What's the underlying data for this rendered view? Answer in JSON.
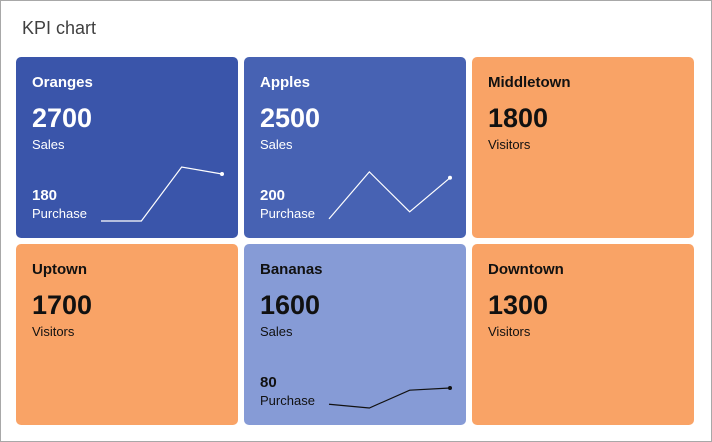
{
  "title": "KPI chart",
  "chart_data": {
    "type": "kpi",
    "title": "KPI chart",
    "tiles": [
      {
        "name": "Oranges",
        "value": "2700",
        "label": "Sales",
        "sub_value": "180",
        "sub_label": "Purchase",
        "bg": "#3a55aa",
        "fg": "#ffffff",
        "sparkline": [
          0,
          0,
          1,
          0.87
        ]
      },
      {
        "name": "Apples",
        "value": "2500",
        "label": "Sales",
        "sub_value": "200",
        "sub_label": "Purchase",
        "bg": "#4762b3",
        "fg": "#ffffff",
        "sparkline": [
          0.04,
          0.91,
          0.17,
          0.8
        ]
      },
      {
        "name": "Middletown",
        "value": "1800",
        "label": "Visitors",
        "bg": "#f9a366",
        "fg": "#111111"
      },
      {
        "name": "Uptown",
        "value": "1700",
        "label": "Visitors",
        "bg": "#f9a366",
        "fg": "#111111"
      },
      {
        "name": "Bananas",
        "value": "1600",
        "label": "Sales",
        "sub_value": "80",
        "sub_label": "Purchase",
        "bg": "#869bd6",
        "fg": "#111111",
        "sparkline": [
          0.07,
          0,
          0.33,
          0.37
        ]
      },
      {
        "name": "Downtown",
        "value": "1300",
        "label": "Visitors",
        "bg": "#f9a366",
        "fg": "#111111"
      }
    ]
  }
}
